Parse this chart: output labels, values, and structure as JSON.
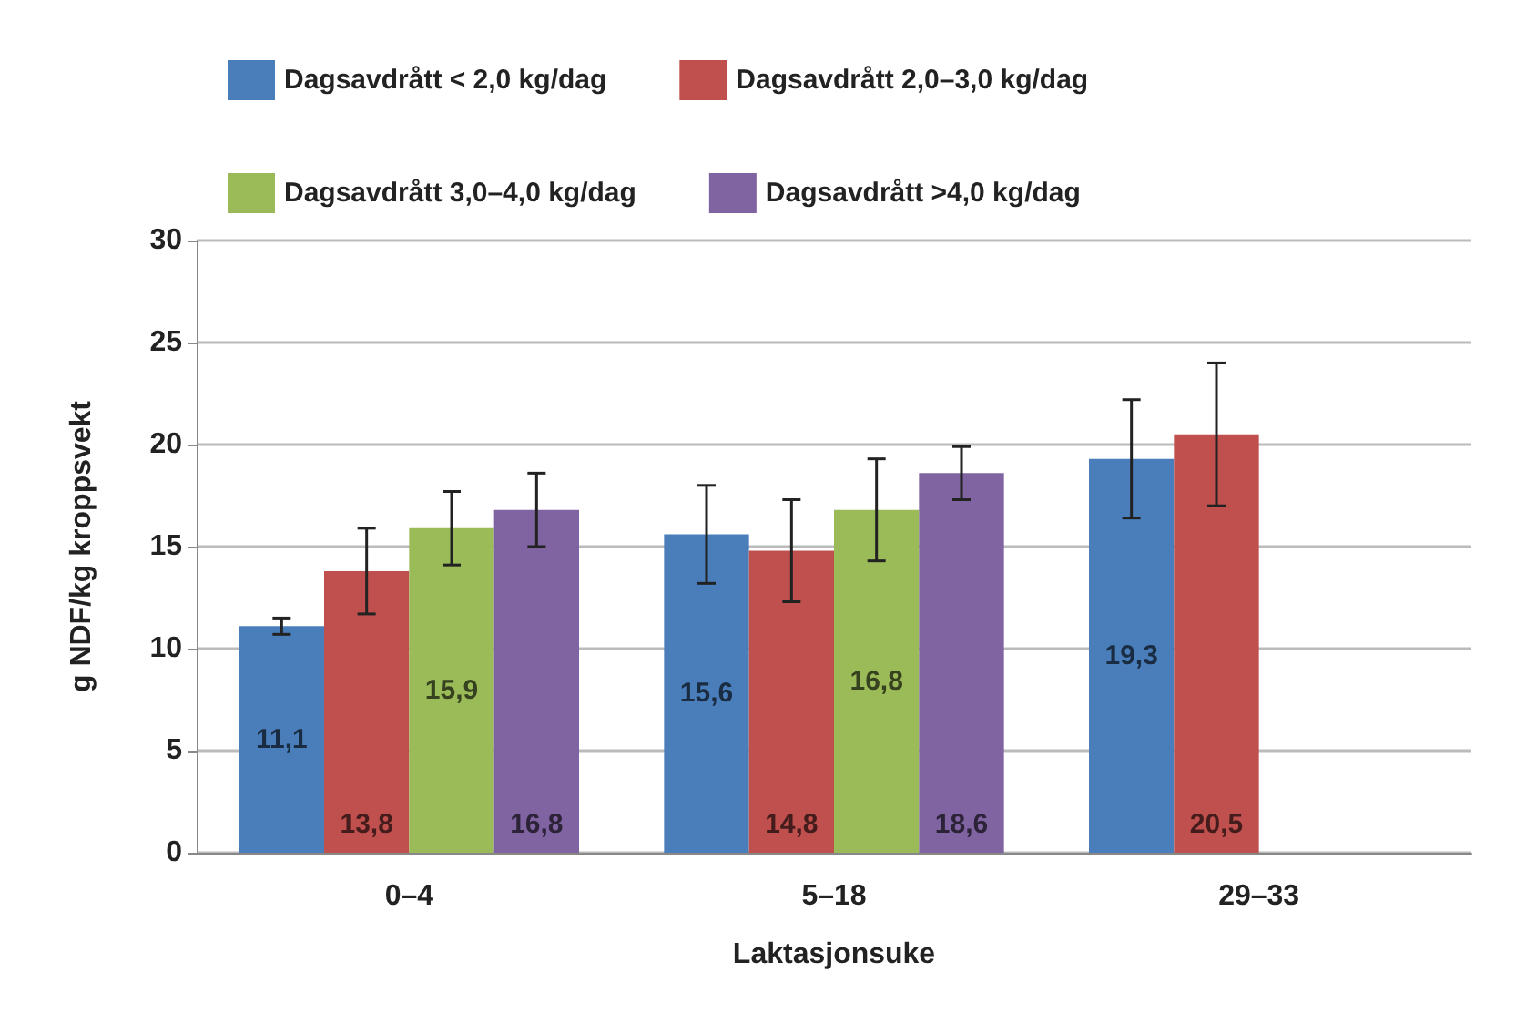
{
  "chart_data": {
    "type": "bar",
    "xlabel": "Laktasjonsuke",
    "ylabel": "g NDF/kg kroppsvekt",
    "categories": [
      "0–4",
      "5–18",
      "29–33"
    ],
    "series": [
      {
        "name": "Dagsavdrått < 2,0 kg/dag",
        "color": "#4a7ebb",
        "values": [
          11.1,
          15.6,
          19.3
        ],
        "errors": [
          0.4,
          2.4,
          2.9
        ],
        "value_labels": [
          "11,1",
          "15,6",
          "19,3"
        ]
      },
      {
        "name": "Dagsavdrått 2,0–3,0 kg/dag",
        "color": "#c0504d",
        "values": [
          13.8,
          14.8,
          20.5
        ],
        "errors": [
          2.1,
          2.5,
          3.5
        ],
        "value_labels": [
          "13,8",
          "14,8",
          "20,5"
        ]
      },
      {
        "name": "Dagsavdrått 3,0–4,0 kg/dag",
        "color": "#9bbb59",
        "values": [
          15.9,
          16.8,
          null
        ],
        "errors": [
          1.8,
          2.5,
          null
        ],
        "value_labels": [
          "15,9",
          "16,8",
          null
        ]
      },
      {
        "name": "Dagsavdrått >4,0 kg/dag",
        "color": "#8064a2",
        "values": [
          16.8,
          18.6,
          null
        ],
        "errors": [
          1.8,
          1.3,
          null
        ],
        "value_labels": [
          "16,8",
          "18,6",
          null
        ]
      }
    ],
    "ylim": [
      0,
      30
    ],
    "yticks": [
      0,
      5,
      10,
      15,
      20,
      25,
      30
    ],
    "grid": "y",
    "legend": "top"
  }
}
